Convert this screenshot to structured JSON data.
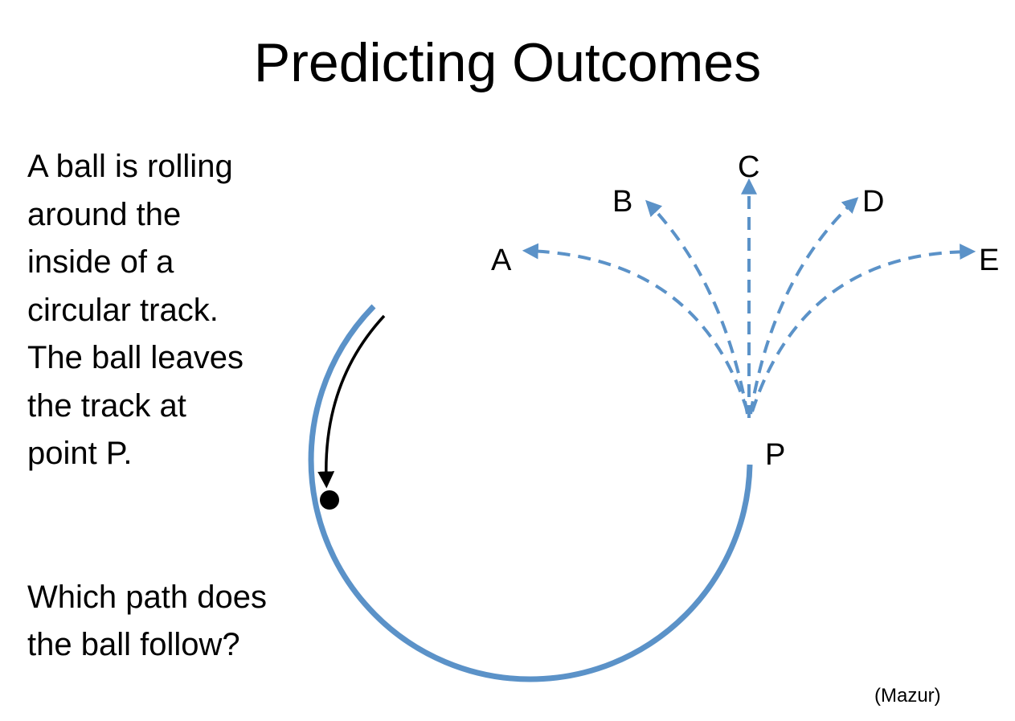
{
  "title": "Predicting Outcomes",
  "prompt_lines": [
    "A ball is rolling",
    "around the",
    "inside of a",
    "circular track.",
    "The ball leaves",
    "the track at",
    "point P."
  ],
  "question_lines": [
    "Which path does",
    "the ball follow?"
  ],
  "credit": "(Mazur)",
  "diagram": {
    "point_label": "P",
    "path_labels": [
      "A",
      "B",
      "C",
      "D",
      "E"
    ],
    "colors": {
      "track": "#5b92c8",
      "paths": "#5b92c8",
      "ball": "#000000",
      "motion_arrow": "#000000"
    }
  }
}
